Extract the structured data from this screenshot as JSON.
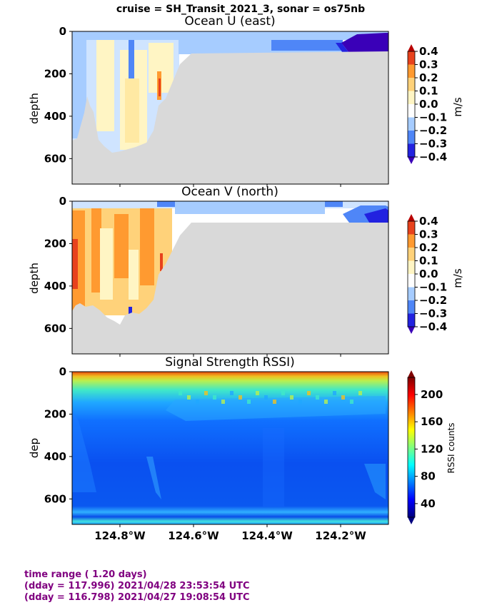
{
  "suptitle": "cruise = SH_Transit_2021_3,  sonar = os75nb",
  "colors": {
    "land": "#d9d9d9",
    "footer": "#800080"
  },
  "chart_data": [
    {
      "type": "heatmap",
      "title": "Ocean U (east)",
      "ylabel": "depth",
      "y_ticks": [
        0,
        200,
        400,
        600
      ],
      "ylim": [
        0,
        720
      ],
      "y_inverted": true,
      "x_tick_labels": [],
      "colorbar": {
        "label": "m/s",
        "tick_labels": [
          "0.4",
          "0.3",
          "0.2",
          "0.1",
          "0.0",
          "−0.1",
          "−0.2",
          "−0.3",
          "−0.4"
        ],
        "range": [
          -0.4,
          0.4
        ],
        "levels": [
          "#3a00b8",
          "#2222e0",
          "#4f86f7",
          "#a6ccff",
          "#ffffff",
          "#fff5c4",
          "#ffd27a",
          "#ff9a30",
          "#e8421c",
          "#b80000"
        ]
      }
    },
    {
      "type": "heatmap",
      "title": "Ocean V (north)",
      "ylabel": "depth",
      "y_ticks": [
        0,
        200,
        400,
        600
      ],
      "ylim": [
        0,
        720
      ],
      "y_inverted": true,
      "x_tick_labels": [],
      "colorbar": {
        "label": "m/s",
        "tick_labels": [
          "0.4",
          "0.3",
          "0.2",
          "0.1",
          "0.0",
          "−0.1",
          "−0.2",
          "−0.3",
          "−0.4"
        ],
        "range": [
          -0.4,
          0.4
        ],
        "levels": [
          "#3a00b8",
          "#2222e0",
          "#4f86f7",
          "#a6ccff",
          "#ffffff",
          "#fff5c4",
          "#ffd27a",
          "#ff9a30",
          "#e8421c",
          "#b80000"
        ]
      }
    },
    {
      "type": "heatmap",
      "title": "Signal Strength RSSI)",
      "ylabel": "dep",
      "y_ticks": [
        0,
        200,
        400,
        600
      ],
      "ylim": [
        0,
        720
      ],
      "y_inverted": true,
      "x_tick_labels": [
        "124.8°W",
        "124.6°W",
        "124.4°W",
        "124.2°W"
      ],
      "x_ticks": [
        -124.8,
        -124.6,
        -124.4,
        -124.2
      ],
      "xlim": [
        -124.93,
        -124.07
      ],
      "colorbar": {
        "label": "RSSI counts",
        "tick_labels": [
          "200",
          "160",
          "120",
          "80",
          "40"
        ],
        "tick_values": [
          200,
          160,
          120,
          80,
          40
        ],
        "range": [
          20,
          225
        ],
        "colormap": "jet"
      }
    }
  ],
  "footer": {
    "line1": "time range ( 1.20 days)",
    "line2": "(dday = 117.996) 2021/04/28 23:53:54 UTC",
    "line3": "(dday = 116.798) 2021/04/27 19:08:54 UTC"
  }
}
